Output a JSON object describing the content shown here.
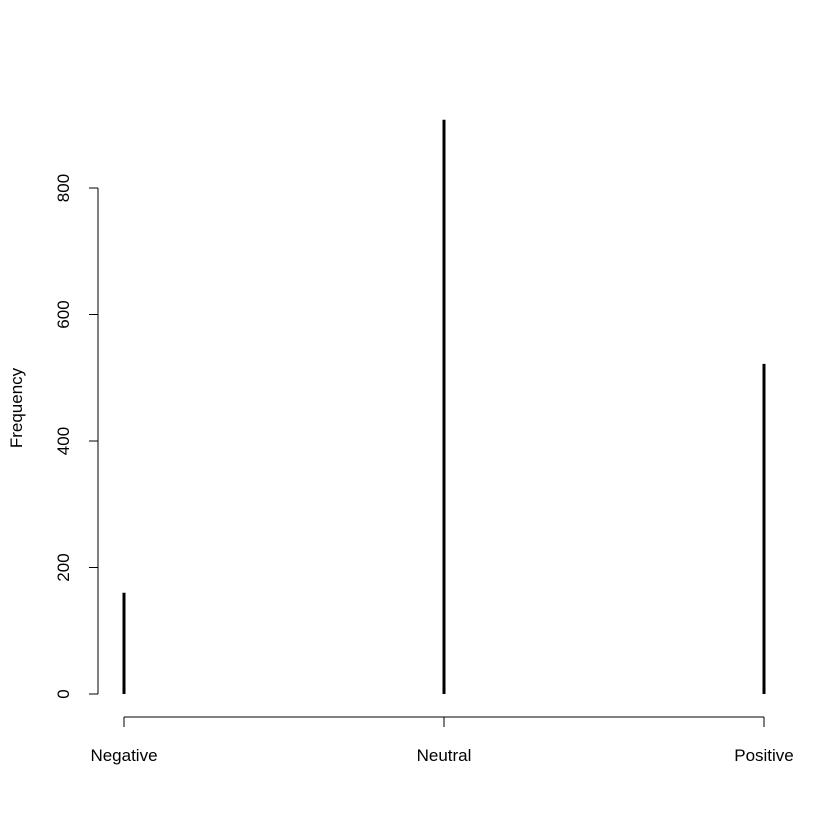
{
  "chart_data": {
    "type": "bar",
    "title": "",
    "xlabel": "",
    "ylabel": "Frequency",
    "categories": [
      "Negative",
      "Neutral",
      "Positive"
    ],
    "values": [
      160,
      908,
      522
    ],
    "ylim": [
      0,
      908
    ],
    "yticks": [
      0,
      200,
      400,
      600,
      800
    ],
    "ytick_labels": [
      "0",
      "200",
      "400",
      "600",
      "800"
    ],
    "grid": false,
    "legend": "none",
    "bar_color": "#000000"
  }
}
